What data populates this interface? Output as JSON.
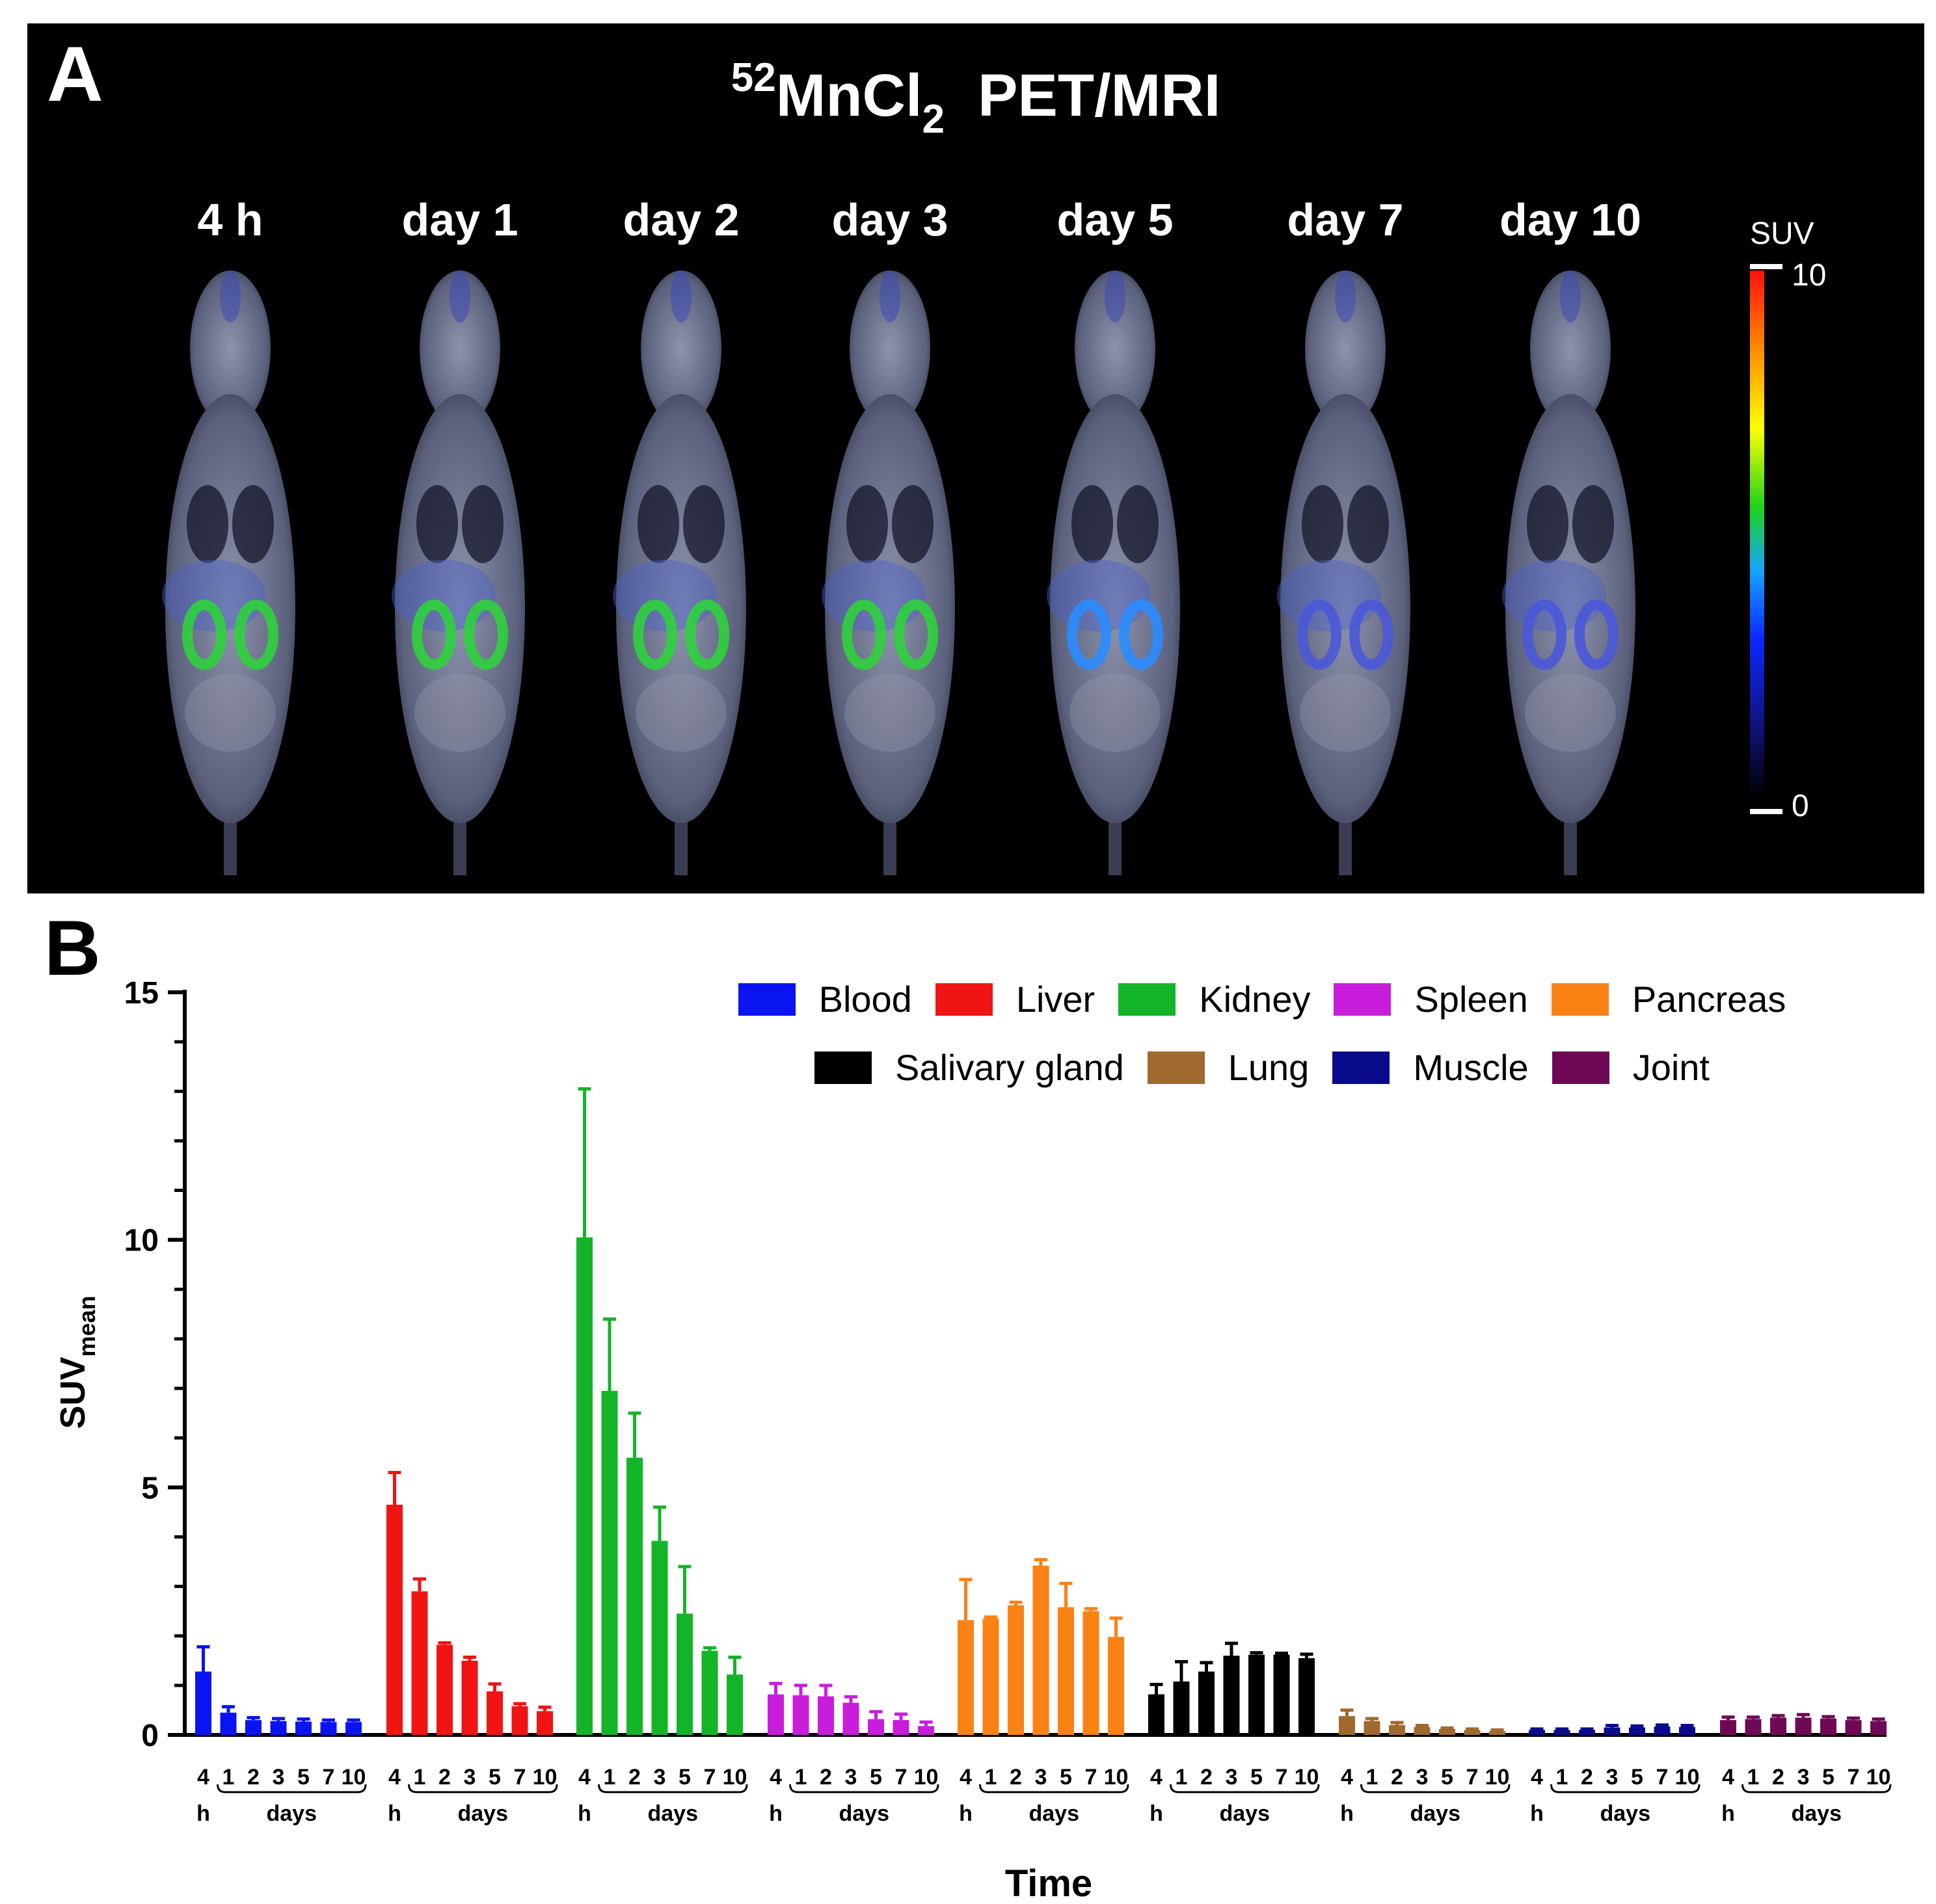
{
  "panel_a": {
    "letter": "A",
    "title_sup": "52",
    "title_main": "MnCl",
    "title_sub": "2",
    "title_rest": "PET/MRI",
    "timepoints": [
      "4 h",
      "day 1",
      "day 2",
      "day 3",
      "day 5",
      "day 7",
      "day 10"
    ],
    "colorbar": {
      "label": "SUV",
      "max": "10",
      "min": "0"
    },
    "kidney_intensity": [
      0.55,
      0.5,
      0.45,
      0.42,
      0.3,
      0.2,
      0.18
    ]
  },
  "chart_data": {
    "panel_letter": "B",
    "type": "bar",
    "ylabel": "SUV",
    "ylabel_sub": "mean",
    "xlabel": "Time",
    "ylim": [
      0,
      15
    ],
    "yticks": [
      "0",
      "5",
      "10",
      "15"
    ],
    "tick_labels": [
      "4",
      "1",
      "2",
      "3",
      "5",
      "7",
      "10"
    ],
    "group_sub_hours": "h",
    "group_sub_days": "days",
    "series": [
      {
        "name": "Blood",
        "color": "#0a14f0",
        "values": [
          1.28,
          0.45,
          0.3,
          0.28,
          0.27,
          0.26,
          0.26
        ],
        "errors": [
          0.5,
          0.12,
          0.05,
          0.05,
          0.05,
          0.04,
          0.04
        ]
      },
      {
        "name": "Liver",
        "color": "#f01414",
        "values": [
          4.65,
          2.9,
          1.82,
          1.5,
          0.88,
          0.58,
          0.48
        ],
        "errors": [
          0.65,
          0.25,
          0.04,
          0.07,
          0.15,
          0.05,
          0.08
        ]
      },
      {
        "name": "Kidney",
        "color": "#14b428",
        "values": [
          10.05,
          6.95,
          5.6,
          3.92,
          2.45,
          1.7,
          1.22
        ],
        "errors": [
          3.0,
          1.45,
          0.9,
          0.68,
          0.95,
          0.06,
          0.35
        ]
      },
      {
        "name": "Spleen",
        "color": "#c81edc",
        "values": [
          0.82,
          0.8,
          0.78,
          0.65,
          0.32,
          0.3,
          0.18
        ],
        "errors": [
          0.22,
          0.2,
          0.22,
          0.12,
          0.15,
          0.12,
          0.08
        ]
      },
      {
        "name": "Pancreas",
        "color": "#fa8214",
        "values": [
          2.32,
          2.35,
          2.62,
          3.42,
          2.58,
          2.5,
          1.98
        ],
        "errors": [
          0.82,
          0.03,
          0.06,
          0.12,
          0.48,
          0.05,
          0.38
        ]
      },
      {
        "name": "Salivary gland",
        "color": "#000000",
        "values": [
          0.82,
          1.08,
          1.28,
          1.6,
          1.62,
          1.62,
          1.55
        ],
        "errors": [
          0.2,
          0.4,
          0.18,
          0.25,
          0.04,
          0.03,
          0.08
        ]
      },
      {
        "name": "Lung",
        "color": "#a0692d",
        "values": [
          0.38,
          0.28,
          0.2,
          0.16,
          0.12,
          0.1,
          0.08
        ],
        "errors": [
          0.12,
          0.05,
          0.05,
          0.03,
          0.02,
          0.02,
          0.02
        ]
      },
      {
        "name": "Muscle",
        "color": "#0a0a8c",
        "values": [
          0.1,
          0.1,
          0.1,
          0.15,
          0.15,
          0.17,
          0.16
        ],
        "errors": [
          0.02,
          0.02,
          0.02,
          0.04,
          0.03,
          0.03,
          0.03
        ]
      },
      {
        "name": "Joint",
        "color": "#6e0a55",
        "values": [
          0.3,
          0.32,
          0.35,
          0.35,
          0.33,
          0.3,
          0.28
        ],
        "errors": [
          0.06,
          0.04,
          0.04,
          0.06,
          0.04,
          0.04,
          0.04
        ]
      }
    ]
  }
}
